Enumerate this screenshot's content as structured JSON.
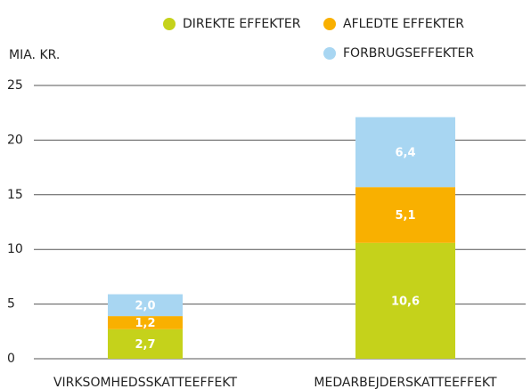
{
  "chart_data": {
    "type": "stacked_bar",
    "y_label": "MIA. KR.",
    "categories": [
      "VIRKSOMHEDSSKATTEEFFEKT",
      "MEDARBEJDERSKATTEEFFEKT"
    ],
    "series": [
      {
        "name": "DIREKTE EFFEKTER",
        "color": "#c5d21b",
        "values": [
          2.7,
          10.6
        ],
        "value_labels": [
          "2,7",
          "10,6"
        ]
      },
      {
        "name": "AFLEDTE EFFEKTER",
        "color": "#f9b000",
        "values": [
          1.2,
          5.1
        ],
        "value_labels": [
          "1,2",
          "5,1"
        ]
      },
      {
        "name": "FORBRUGSEFFEKTER",
        "color": "#a8d6f2",
        "values": [
          2.0,
          6.4
        ],
        "value_labels": [
          "2,0",
          "6,4"
        ]
      }
    ],
    "ylim": [
      0,
      25
    ],
    "yticks": [
      0,
      5,
      10,
      15,
      20,
      25
    ],
    "grid": true
  }
}
